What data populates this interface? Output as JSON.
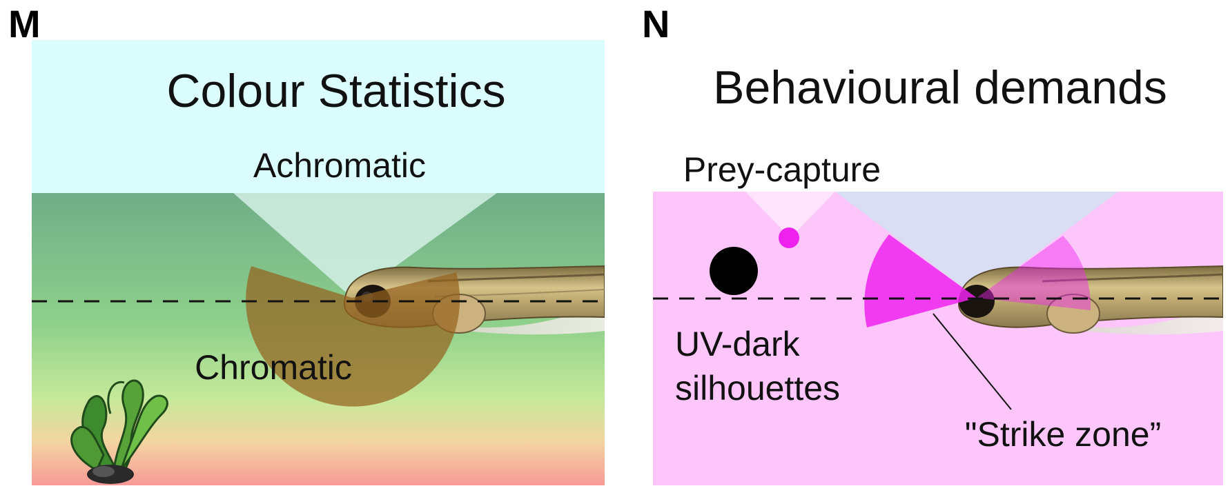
{
  "panel_m": {
    "letter": "M",
    "title": "Colour Statistics",
    "achromatic_label": "Achromatic",
    "chromatic_label": "Chromatic",
    "colors": {
      "sky": "#dcfdfd",
      "water_top": "#74b28a",
      "water_mid": "#a6de8a",
      "water_bottom": "#f59a98",
      "achromatic_cone": "#cfeee2",
      "chromatic_fan": "#9a6a2a"
    }
  },
  "panel_n": {
    "letter": "N",
    "title": "Behavioural demands",
    "prey_capture_label": "Prey-capture",
    "uv_dark_label_line1": "UV-dark",
    "uv_dark_label_line2": "silhouettes",
    "strike_zone_label": "\"Strike zone”",
    "colors": {
      "background": "#fdc6fb",
      "upper_cone": "#d7e0f3",
      "prey": "#ee22ee",
      "strike_zone": "#ee22ee",
      "silhouette": "#000000"
    }
  }
}
